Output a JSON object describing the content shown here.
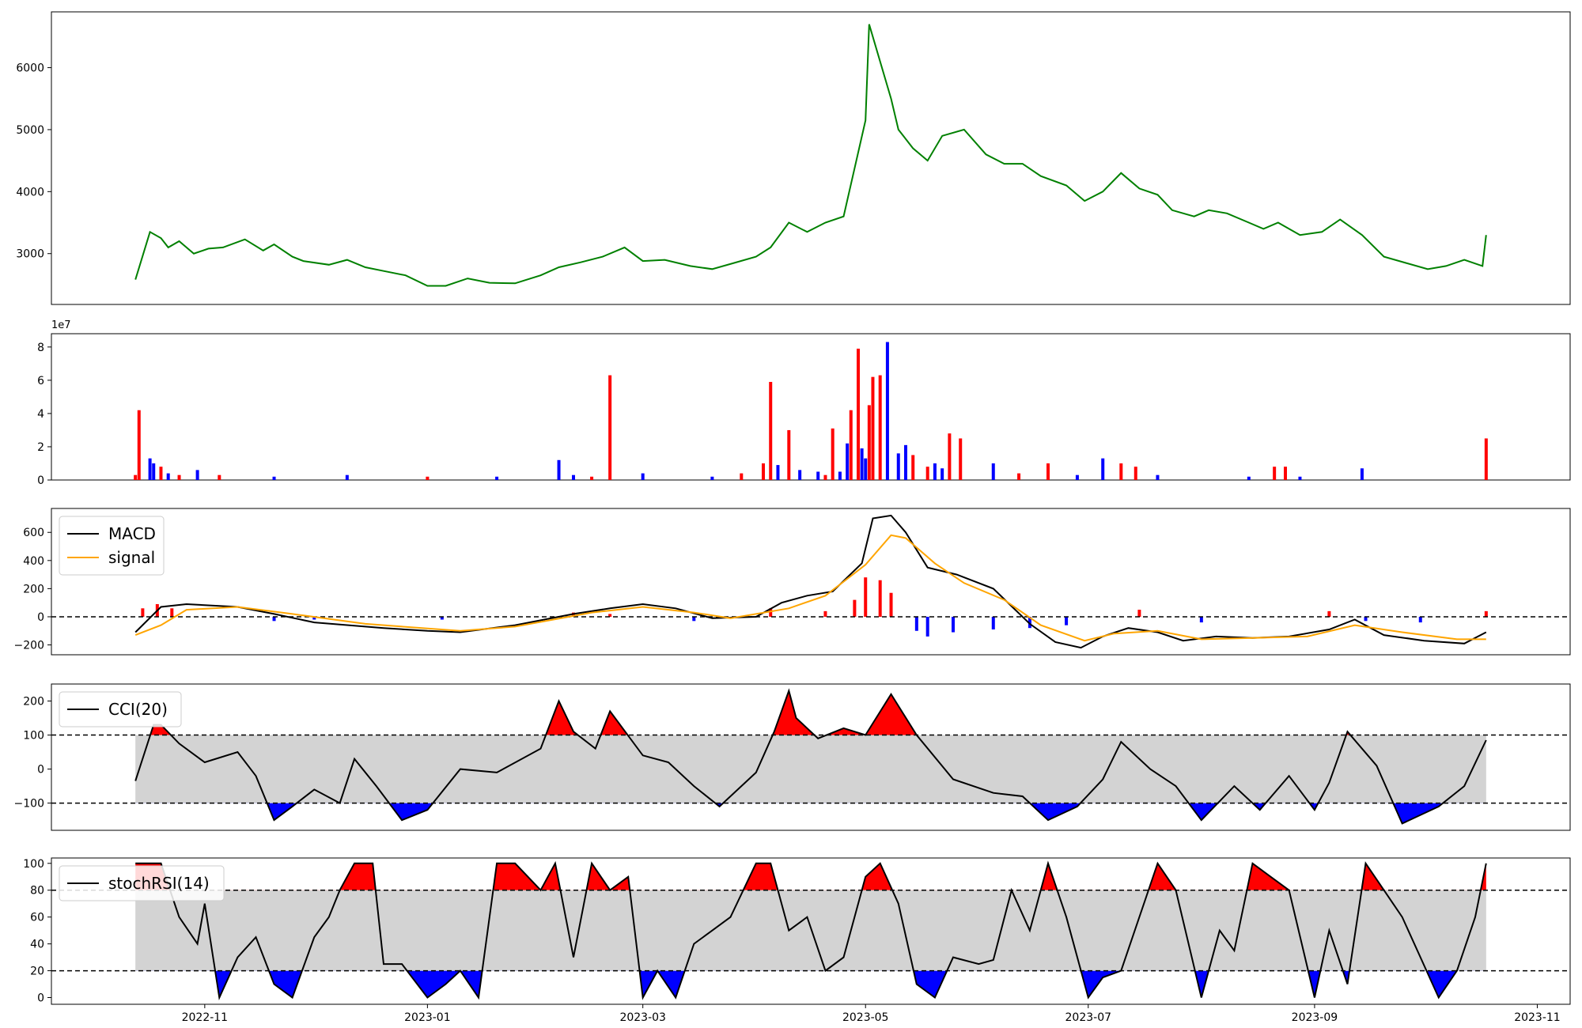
{
  "chart_data": [
    {
      "type": "line",
      "panel": "price",
      "color": "#008000",
      "ylim": [
        2180,
        6900
      ],
      "yticks": [
        3000,
        4000,
        5000,
        6000
      ],
      "x": [
        "2022-10-13",
        "2022-10-17",
        "2022-10-20",
        "2022-10-22",
        "2022-10-25",
        "2022-10-29",
        "2022-11-02",
        "2022-11-06",
        "2022-11-12",
        "2022-11-17",
        "2022-11-20",
        "2022-11-25",
        "2022-11-28",
        "2022-12-05",
        "2022-12-10",
        "2022-12-15",
        "2022-12-20",
        "2022-12-26",
        "2023-01-01",
        "2023-01-06",
        "2023-01-12",
        "2023-01-18",
        "2023-01-25",
        "2023-02-01",
        "2023-02-06",
        "2023-02-12",
        "2023-02-18",
        "2023-02-24",
        "2023-03-01",
        "2023-03-07",
        "2023-03-14",
        "2023-03-20",
        "2023-03-26",
        "2023-04-01",
        "2023-04-05",
        "2023-04-10",
        "2023-04-15",
        "2023-04-20",
        "2023-04-25",
        "2023-05-01",
        "2023-05-02",
        "2023-05-08",
        "2023-05-10",
        "2023-05-14",
        "2023-05-18",
        "2023-05-22",
        "2023-05-28",
        "2023-06-03",
        "2023-06-08",
        "2023-06-13",
        "2023-06-18",
        "2023-06-25",
        "2023-06-30",
        "2023-07-05",
        "2023-07-10",
        "2023-07-15",
        "2023-07-20",
        "2023-07-24",
        "2023-07-30",
        "2023-08-03",
        "2023-08-08",
        "2023-08-14",
        "2023-08-18",
        "2023-08-22",
        "2023-08-28",
        "2023-09-03",
        "2023-09-08",
        "2023-09-14",
        "2023-09-20",
        "2023-09-26",
        "2023-10-02",
        "2023-10-07",
        "2023-10-12",
        "2023-10-17",
        "2023-10-18"
      ],
      "y": [
        2580,
        3350,
        3250,
        3100,
        3200,
        3000,
        3080,
        3100,
        3230,
        3050,
        3150,
        2950,
        2880,
        2820,
        2900,
        2780,
        2720,
        2650,
        2480,
        2480,
        2600,
        2530,
        2520,
        2650,
        2780,
        2860,
        2950,
        3100,
        2880,
        2900,
        2800,
        2750,
        2850,
        2950,
        3100,
        3500,
        3350,
        3500,
        3600,
        5150,
        6700,
        5500,
        5000,
        4700,
        4500,
        4900,
        5000,
        4600,
        4450,
        4450,
        4250,
        4100,
        3850,
        4000,
        4300,
        4050,
        3950,
        3700,
        3600,
        3700,
        3650,
        3500,
        3400,
        3500,
        3300,
        3350,
        3550,
        3300,
        2950,
        2850,
        2750,
        2800,
        2900,
        2800,
        3300
      ]
    },
    {
      "type": "bar",
      "panel": "volume",
      "scale_label": "1e7",
      "ylim": [
        0,
        8.8
      ],
      "yticks": [
        0,
        2,
        4,
        6,
        8
      ],
      "colors": {
        "up": "#ff0000",
        "down": "#0000ff"
      },
      "x": [
        "2022-10-13",
        "2022-10-14",
        "2022-10-17",
        "2022-10-18",
        "2022-10-20",
        "2022-10-22",
        "2022-10-25",
        "2022-10-30",
        "2022-11-05",
        "2022-11-20",
        "2022-12-10",
        "2023-01-01",
        "2023-01-20",
        "2023-02-06",
        "2023-02-10",
        "2023-02-15",
        "2023-02-20",
        "2023-03-01",
        "2023-03-20",
        "2023-03-28",
        "2023-04-03",
        "2023-04-05",
        "2023-04-07",
        "2023-04-10",
        "2023-04-13",
        "2023-04-18",
        "2023-04-20",
        "2023-04-22",
        "2023-04-24",
        "2023-04-26",
        "2023-04-27",
        "2023-04-29",
        "2023-04-30",
        "2023-05-01",
        "2023-05-02",
        "2023-05-03",
        "2023-05-05",
        "2023-05-07",
        "2023-05-10",
        "2023-05-12",
        "2023-05-14",
        "2023-05-18",
        "2023-05-20",
        "2023-05-22",
        "2023-05-24",
        "2023-05-27",
        "2023-06-05",
        "2023-06-12",
        "2023-06-20",
        "2023-06-28",
        "2023-07-05",
        "2023-07-10",
        "2023-07-14",
        "2023-07-20",
        "2023-08-14",
        "2023-08-21",
        "2023-08-24",
        "2023-08-28",
        "2023-09-14",
        "2023-10-18"
      ],
      "values": [
        0.3,
        4.2,
        1.3,
        1.0,
        0.8,
        0.4,
        0.3,
        0.6,
        0.3,
        0.2,
        0.3,
        0.2,
        0.2,
        1.2,
        0.3,
        0.2,
        6.3,
        0.4,
        0.2,
        0.4,
        1.0,
        5.9,
        0.9,
        3.0,
        0.6,
        0.5,
        0.3,
        3.1,
        0.5,
        2.2,
        4.2,
        7.9,
        1.9,
        1.3,
        4.5,
        6.2,
        6.3,
        8.3,
        1.6,
        2.1,
        1.5,
        0.8,
        1.0,
        0.7,
        2.8,
        2.5,
        1.0,
        0.4,
        1.0,
        0.3,
        1.3,
        1.0,
        0.8,
        0.3,
        0.2,
        0.8,
        0.8,
        0.2,
        0.7,
        2.5
      ],
      "direction": [
        "up",
        "up",
        "down",
        "down",
        "up",
        "down",
        "up",
        "down",
        "up",
        "down",
        "down",
        "up",
        "down",
        "down",
        "down",
        "up",
        "up",
        "down",
        "down",
        "up",
        "up",
        "up",
        "down",
        "up",
        "down",
        "down",
        "up",
        "up",
        "down",
        "down",
        "up",
        "up",
        "down",
        "down",
        "up",
        "up",
        "up",
        "down",
        "down",
        "down",
        "up",
        "up",
        "down",
        "down",
        "up",
        "up",
        "down",
        "up",
        "up",
        "down",
        "down",
        "up",
        "up",
        "down",
        "down",
        "up",
        "up",
        "down",
        "down",
        "up"
      ]
    },
    {
      "type": "line",
      "panel": "macd",
      "ylim": [
        -270,
        770
      ],
      "yticks": [
        -200,
        0,
        200,
        400,
        600
      ],
      "zero_line": 0,
      "series": [
        {
          "name": "MACD",
          "color": "#000000",
          "x": [
            "2022-10-13",
            "2022-10-20",
            "2022-10-27",
            "2022-11-10",
            "2022-11-20",
            "2022-12-01",
            "2022-12-20",
            "2023-01-01",
            "2023-01-10",
            "2023-01-25",
            "2023-02-10",
            "2023-02-20",
            "2023-03-01",
            "2023-03-10",
            "2023-03-20",
            "2023-04-01",
            "2023-04-08",
            "2023-04-15",
            "2023-04-22",
            "2023-04-30",
            "2023-05-03",
            "2023-05-08",
            "2023-05-12",
            "2023-05-18",
            "2023-05-26",
            "2023-06-05",
            "2023-06-15",
            "2023-06-22",
            "2023-06-29",
            "2023-07-05",
            "2023-07-12",
            "2023-07-20",
            "2023-07-27",
            "2023-08-05",
            "2023-08-15",
            "2023-08-25",
            "2023-09-05",
            "2023-09-12",
            "2023-09-20",
            "2023-10-01",
            "2023-10-12",
            "2023-10-18"
          ],
          "y": [
            -110,
            70,
            90,
            70,
            20,
            -40,
            -80,
            -100,
            -110,
            -60,
            20,
            60,
            90,
            60,
            -10,
            0,
            100,
            150,
            180,
            380,
            700,
            720,
            600,
            350,
            300,
            200,
            -50,
            -180,
            -220,
            -140,
            -80,
            -110,
            -170,
            -140,
            -150,
            -140,
            -90,
            -20,
            -130,
            -170,
            -190,
            -110
          ]
        },
        {
          "name": "signal",
          "color": "#ffa500",
          "x": [
            "2022-10-13",
            "2022-10-20",
            "2022-10-27",
            "2022-11-10",
            "2022-11-25",
            "2022-12-15",
            "2023-01-10",
            "2023-01-25",
            "2023-02-15",
            "2023-03-01",
            "2023-03-15",
            "2023-03-25",
            "2023-04-10",
            "2023-04-20",
            "2023-05-01",
            "2023-05-08",
            "2023-05-12",
            "2023-05-20",
            "2023-05-28",
            "2023-06-08",
            "2023-06-18",
            "2023-06-30",
            "2023-07-08",
            "2023-07-20",
            "2023-08-01",
            "2023-08-15",
            "2023-08-30",
            "2023-09-12",
            "2023-09-25",
            "2023-10-10",
            "2023-10-18"
          ],
          "y": [
            -130,
            -60,
            50,
            70,
            20,
            -50,
            -100,
            -70,
            30,
            70,
            30,
            -10,
            60,
            150,
            370,
            580,
            560,
            380,
            240,
            120,
            -60,
            -170,
            -120,
            -100,
            -160,
            -150,
            -140,
            -60,
            -110,
            -160,
            -160
          ]
        }
      ],
      "histogram": {
        "colors": {
          "positive": "#ff0000",
          "negative": "#0000ff"
        },
        "x": [
          "2022-10-15",
          "2022-10-19",
          "2022-10-23",
          "2022-11-20",
          "2022-12-01",
          "2023-01-05",
          "2023-02-10",
          "2023-02-20",
          "2023-03-15",
          "2023-04-05",
          "2023-04-20",
          "2023-04-28",
          "2023-05-01",
          "2023-05-05",
          "2023-05-08",
          "2023-05-15",
          "2023-05-18",
          "2023-05-25",
          "2023-06-05",
          "2023-06-15",
          "2023-06-25",
          "2023-07-15",
          "2023-08-01",
          "2023-09-05",
          "2023-09-15",
          "2023-09-30",
          "2023-10-18"
        ],
        "values": [
          60,
          90,
          60,
          -30,
          -20,
          -20,
          30,
          20,
          -30,
          60,
          40,
          120,
          280,
          260,
          170,
          -100,
          -140,
          -110,
          -90,
          -80,
          -60,
          50,
          -40,
          40,
          -30,
          -40,
          40
        ]
      }
    },
    {
      "type": "line",
      "panel": "cci",
      "ylim": [
        -180,
        250
      ],
      "yticks": [
        -100,
        0,
        100,
        200
      ],
      "thresholds": [
        100,
        -100
      ],
      "band_color": "#d3d3d3",
      "fill_colors": {
        "above": "#ff0000",
        "below": "#0000ff"
      },
      "series": [
        {
          "name": "CCI(20)",
          "color": "#000000",
          "x": [
            "2022-10-13",
            "2022-10-18",
            "2022-10-20",
            "2022-10-25",
            "2022-11-01",
            "2022-11-10",
            "2022-11-15",
            "2022-11-20",
            "2022-11-25",
            "2022-12-01",
            "2022-12-08",
            "2022-12-12",
            "2022-12-18",
            "2022-12-25",
            "2023-01-01",
            "2023-01-10",
            "2023-01-20",
            "2023-02-01",
            "2023-02-06",
            "2023-02-10",
            "2023-02-16",
            "2023-02-20",
            "2023-03-01",
            "2023-03-08",
            "2023-03-15",
            "2023-03-22",
            "2023-04-01",
            "2023-04-06",
            "2023-04-10",
            "2023-04-12",
            "2023-04-18",
            "2023-04-25",
            "2023-05-01",
            "2023-05-08",
            "2023-05-15",
            "2023-05-25",
            "2023-06-05",
            "2023-06-13",
            "2023-06-20",
            "2023-06-28",
            "2023-07-05",
            "2023-07-10",
            "2023-07-18",
            "2023-07-25",
            "2023-08-01",
            "2023-08-10",
            "2023-08-17",
            "2023-08-25",
            "2023-09-01",
            "2023-09-05",
            "2023-09-10",
            "2023-09-18",
            "2023-09-25",
            "2023-10-05",
            "2023-10-12",
            "2023-10-18"
          ],
          "y": [
            -35,
            130,
            130,
            75,
            20,
            50,
            -20,
            -150,
            -110,
            -60,
            -100,
            30,
            -50,
            -150,
            -120,
            0,
            -10,
            60,
            200,
            110,
            60,
            170,
            40,
            20,
            -50,
            -110,
            -10,
            110,
            230,
            150,
            90,
            120,
            100,
            220,
            100,
            -30,
            -70,
            -80,
            -150,
            -110,
            -30,
            80,
            0,
            -50,
            -150,
            -50,
            -120,
            -20,
            -120,
            -40,
            110,
            10,
            -160,
            -110,
            -50,
            85
          ]
        }
      ]
    },
    {
      "type": "line",
      "panel": "stochrsi",
      "ylim": [
        -5,
        104
      ],
      "yticks": [
        0,
        20,
        40,
        60,
        80,
        100
      ],
      "thresholds": [
        80,
        20
      ],
      "band_color": "#d3d3d3",
      "fill_colors": {
        "above": "#ff0000",
        "below": "#0000ff"
      },
      "series": [
        {
          "name": "stochRSI(14)",
          "color": "#000000",
          "x": [
            "2022-10-13",
            "2022-10-18",
            "2022-10-20",
            "2022-10-25",
            "2022-10-30",
            "2022-11-01",
            "2022-11-05",
            "2022-11-10",
            "2022-11-15",
            "2022-11-20",
            "2022-11-25",
            "2022-12-01",
            "2022-12-05",
            "2022-12-08",
            "2022-12-12",
            "2022-12-17",
            "2022-12-20",
            "2022-12-25",
            "2023-01-01",
            "2023-01-06",
            "2023-01-10",
            "2023-01-15",
            "2023-01-20",
            "2023-01-25",
            "2023-02-01",
            "2023-02-05",
            "2023-02-10",
            "2023-02-15",
            "2023-02-20",
            "2023-02-25",
            "2023-03-01",
            "2023-03-05",
            "2023-03-10",
            "2023-03-15",
            "2023-03-20",
            "2023-03-25",
            "2023-04-01",
            "2023-04-05",
            "2023-04-10",
            "2023-04-15",
            "2023-04-20",
            "2023-04-25",
            "2023-05-01",
            "2023-05-05",
            "2023-05-10",
            "2023-05-15",
            "2023-05-20",
            "2023-05-25",
            "2023-06-01",
            "2023-06-05",
            "2023-06-10",
            "2023-06-15",
            "2023-06-20",
            "2023-06-25",
            "2023-07-01",
            "2023-07-05",
            "2023-07-10",
            "2023-07-15",
            "2023-07-20",
            "2023-07-25",
            "2023-08-01",
            "2023-08-06",
            "2023-08-10",
            "2023-08-15",
            "2023-08-20",
            "2023-08-25",
            "2023-09-01",
            "2023-09-05",
            "2023-09-10",
            "2023-09-15",
            "2023-09-20",
            "2023-09-25",
            "2023-10-05",
            "2023-10-10",
            "2023-10-15",
            "2023-10-18"
          ],
          "y": [
            100,
            100,
            100,
            60,
            40,
            70,
            0,
            30,
            45,
            10,
            0,
            45,
            60,
            80,
            100,
            100,
            25,
            25,
            0,
            10,
            20,
            0,
            100,
            100,
            80,
            100,
            30,
            100,
            80,
            90,
            0,
            20,
            0,
            40,
            50,
            60,
            100,
            100,
            50,
            60,
            20,
            30,
            90,
            100,
            70,
            10,
            0,
            30,
            25,
            28,
            80,
            50,
            100,
            60,
            0,
            15,
            20,
            60,
            100,
            80,
            0,
            50,
            35,
            100,
            90,
            80,
            0,
            50,
            10,
            100,
            80,
            60,
            0,
            20,
            60,
            100
          ]
        }
      ]
    }
  ],
  "x_axis": {
    "range": [
      "2022-09-20",
      "2023-11-10"
    ],
    "tick_dates": [
      "2022-11-01",
      "2023-01-01",
      "2023-03-01",
      "2023-05-01",
      "2023-07-01",
      "2023-09-01",
      "2023-11-01"
    ],
    "tick_labels": [
      "2022-11",
      "2023-01",
      "2023-03",
      "2023-05",
      "2023-07",
      "2023-09",
      "2023-11"
    ]
  }
}
